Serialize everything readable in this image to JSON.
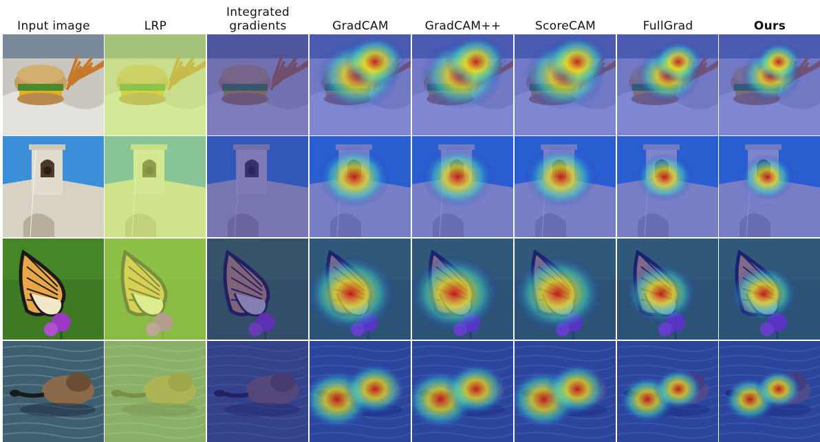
{
  "columns": [
    {
      "label": "Input image",
      "overlay": "none"
    },
    {
      "label": "LRP",
      "overlay": "yellow-green"
    },
    {
      "label": "Integrated gradients",
      "overlay": "purple-blue"
    },
    {
      "label": "GradCAM",
      "overlay": "heatmap"
    },
    {
      "label": "GradCAM++",
      "overlay": "heatmap"
    },
    {
      "label": "ScoreCAM",
      "overlay": "heatmap"
    },
    {
      "label": "FullGrad",
      "overlay": "heatmap"
    },
    {
      "label": "Ours",
      "overlay": "heatmap",
      "bold": true
    }
  ],
  "rows": [
    {
      "subject": "cheeseburger with fries on foil",
      "palette": [
        "#8a6a3a",
        "#d0cfc8",
        "#5a7a2a"
      ]
    },
    {
      "subject": "bell tower against blue sky",
      "palette": [
        "#3b8fd8",
        "#d7d0c2",
        "#6a5a4a"
      ]
    },
    {
      "subject": "monarch butterfly on purple flower",
      "palette": [
        "#4c8a2c",
        "#d89040",
        "#8a3ab0"
      ]
    },
    {
      "subject": "goose swimming in water",
      "palette": [
        "#3a5a6a",
        "#8a6a4a",
        "#1a2a3a"
      ]
    }
  ],
  "colors": {
    "heat_low": "#1a2cc8",
    "heat_mid": "#3fd0c0",
    "heat_high": "#e8e020",
    "heat_peak": "#d01010",
    "lrp_tint": "#c8f060",
    "ig_tint": "#2a2aa0"
  }
}
